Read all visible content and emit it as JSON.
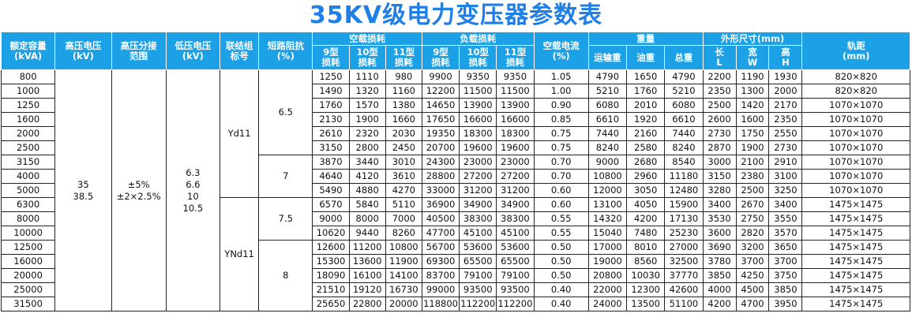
{
  "title": "35KV级电力变压器参数表",
  "headers": {
    "rated_capacity": [
      "额定容量",
      "(kVA)"
    ],
    "hv_voltage": [
      "高压电压",
      "(kV)"
    ],
    "hv_tap": [
      "高压分接",
      "范围"
    ],
    "lv_voltage": [
      "低压电压",
      "(kV)"
    ],
    "connection": [
      "联结组",
      "标号"
    ],
    "impedance": [
      "短路阻抗",
      "(%)"
    ],
    "no_load_loss": "空载损耗",
    "load_loss": "负载损耗",
    "loss_sub": [
      [
        "9型",
        "损耗"
      ],
      [
        "10型",
        "损耗"
      ],
      [
        "11型",
        "损耗"
      ]
    ],
    "no_load_current": [
      "空载电流",
      "(%)"
    ],
    "weight": "重量",
    "weight_sub": [
      "运输重",
      "油重",
      "总重"
    ],
    "dimensions": "外形尺寸(mm)",
    "dim_sub": [
      [
        "长",
        "L"
      ],
      [
        "宽",
        "W"
      ],
      [
        "高",
        "H"
      ]
    ],
    "gauge": [
      "轨距",
      "(mm)"
    ]
  },
  "merged": {
    "hv_voltage": [
      "35",
      "38.5"
    ],
    "hv_tap": [
      "±5%",
      "±2×2.5%"
    ],
    "lv_voltage": [
      "6.3",
      "6.6",
      "10",
      "10.5"
    ],
    "connection_a": "Yd11",
    "connection_b": "YNd11",
    "impedance_a": "6.5",
    "impedance_b": "7",
    "impedance_c": "7.5",
    "impedance_d": "8"
  },
  "rows": [
    [
      "800",
      "1250",
      "1110",
      "980",
      "9900",
      "9350",
      "9350",
      "1.05",
      "4790",
      "1650",
      "4790",
      "2200",
      "1190",
      "1930",
      "820×820"
    ],
    [
      "1000",
      "1490",
      "1320",
      "1160",
      "12200",
      "11500",
      "11500",
      "1.00",
      "5210",
      "1760",
      "5210",
      "2350",
      "1300",
      "2000",
      "820×820"
    ],
    [
      "1250",
      "1760",
      "1570",
      "1380",
      "14650",
      "13900",
      "13900",
      "0.90",
      "6080",
      "2010",
      "6080",
      "2500",
      "1420",
      "2170",
      "1070×1070"
    ],
    [
      "1600",
      "2130",
      "1900",
      "1660",
      "17650",
      "16600",
      "16600",
      "0.85",
      "6610",
      "1920",
      "6610",
      "2600",
      "1600",
      "2350",
      "1070×1070"
    ],
    [
      "2000",
      "2610",
      "2320",
      "2030",
      "19350",
      "18300",
      "18300",
      "0.75",
      "7440",
      "2160",
      "7440",
      "2730",
      "1750",
      "2550",
      "1070×1070"
    ],
    [
      "2500",
      "3150",
      "2800",
      "2450",
      "20700",
      "19600",
      "19600",
      "0.75",
      "8240",
      "2580",
      "8240",
      "2870",
      "1900",
      "2730",
      "1070×1070"
    ],
    [
      "3150",
      "3870",
      "3440",
      "3010",
      "24300",
      "23000",
      "23000",
      "0.70",
      "9000",
      "2680",
      "8540",
      "3000",
      "2100",
      "2910",
      "1070×1070"
    ],
    [
      "4000",
      "4640",
      "4120",
      "3610",
      "28800",
      "27200",
      "27200",
      "0.70",
      "10800",
      "2960",
      "11180",
      "3150",
      "2380",
      "3100",
      "1070×1070"
    ],
    [
      "5000",
      "5490",
      "4880",
      "4270",
      "33000",
      "31200",
      "31200",
      "0.60",
      "12000",
      "3050",
      "12480",
      "3280",
      "2500",
      "3250",
      "1070×1070"
    ],
    [
      "6300",
      "6570",
      "5840",
      "5110",
      "36900",
      "34900",
      "34900",
      "0.60",
      "13100",
      "4050",
      "15900",
      "3400",
      "2670",
      "3400",
      "1475×1475"
    ],
    [
      "8000",
      "9000",
      "8000",
      "7000",
      "40500",
      "38300",
      "38300",
      "0.55",
      "14320",
      "4200",
      "17130",
      "3530",
      "2750",
      "3550",
      "1475×1475"
    ],
    [
      "10000",
      "10620",
      "9440",
      "8260",
      "47700",
      "45100",
      "45100",
      "0.55",
      "15040",
      "7480",
      "25230",
      "3600",
      "2820",
      "3570",
      "1475×1475"
    ],
    [
      "12500",
      "12600",
      "11200",
      "10800",
      "56700",
      "53600",
      "53600",
      "0.50",
      "17000",
      "8010",
      "27000",
      "3690",
      "3200",
      "3650",
      "1475×1475"
    ],
    [
      "16000",
      "15300",
      "13600",
      "11900",
      "69300",
      "65500",
      "65500",
      "0.50",
      "19000",
      "8560",
      "32500",
      "3780",
      "3700",
      "3700",
      "1475×1475"
    ],
    [
      "20000",
      "18090",
      "16100",
      "14100",
      "83700",
      "79100",
      "79100",
      "0.50",
      "20800",
      "10030",
      "37770",
      "3850",
      "4250",
      "3750",
      "1475×1475"
    ],
    [
      "25000",
      "21510",
      "19120",
      "16730",
      "99000",
      "93500",
      "93500",
      "0.40",
      "22000",
      "12300",
      "42600",
      "4000",
      "4500",
      "3850",
      "1475×1475"
    ],
    [
      "31500",
      "25650",
      "22800",
      "20000",
      "118800",
      "112200",
      "112200",
      "0.40",
      "24000",
      "13500",
      "51100",
      "4200",
      "4700",
      "3950",
      "1475×1475"
    ]
  ]
}
